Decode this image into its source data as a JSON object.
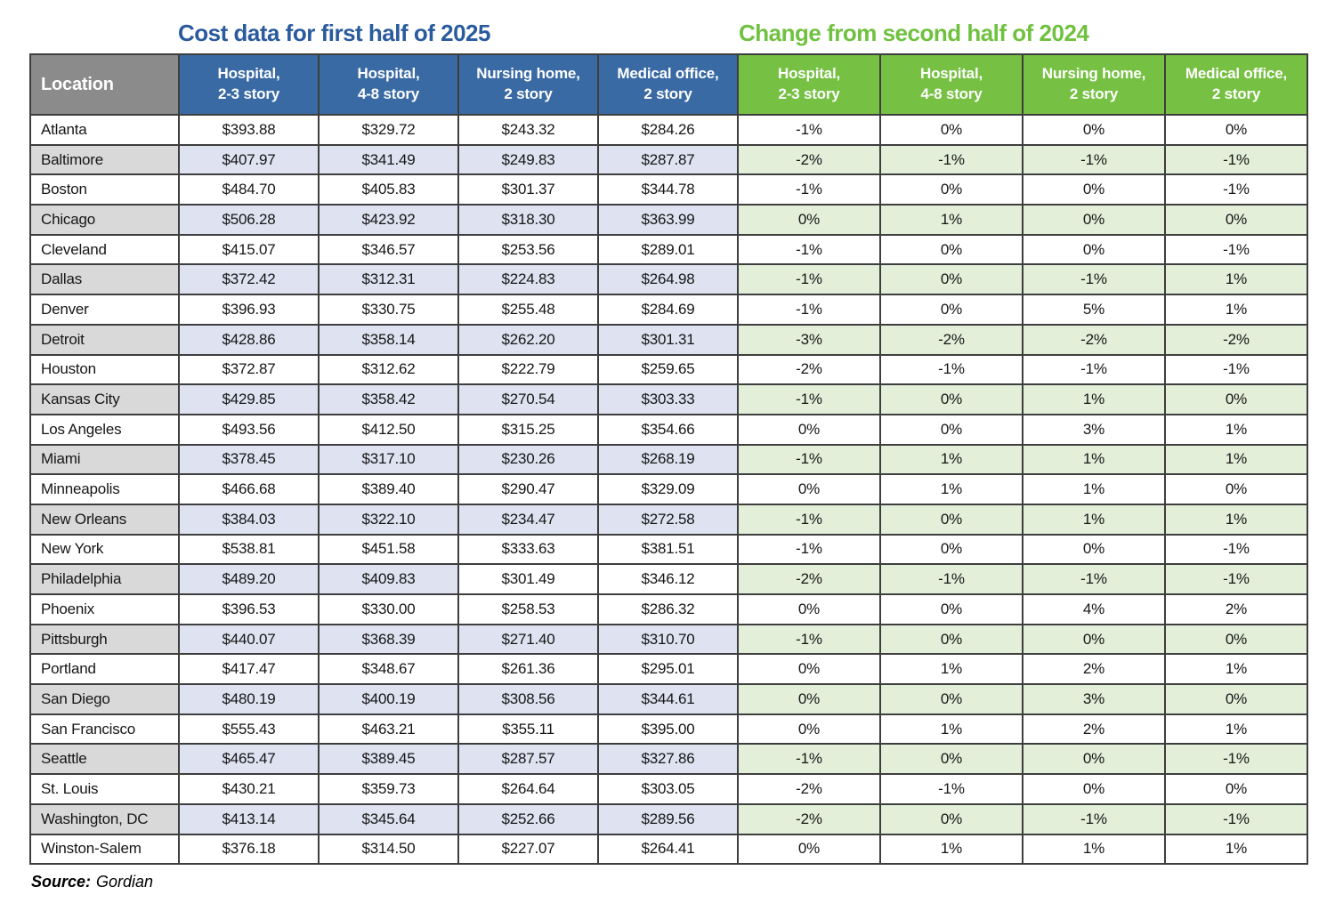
{
  "colors": {
    "title_blue": "#2a5b9e",
    "title_green": "#6fc13f",
    "header_blue": "#3a6aa4",
    "header_green": "#76c043",
    "header_gray": "#8b8b8b",
    "stripe_gray": "#d9d9d9",
    "stripe_lavender": "#dee2f1",
    "stripe_green": "#e3efd9"
  },
  "source": {
    "label": "Source:",
    "value": "Gordian"
  },
  "chart_data": {
    "type": "table",
    "title_left": "Cost data for first half of 2025",
    "title_right": "Change from second half of 2024",
    "location_header": "Location",
    "cost_section_columns": [
      {
        "line1": "Hospital,",
        "line2": "2-3 story"
      },
      {
        "line1": "Hospital,",
        "line2": "4-8 story"
      },
      {
        "line1": "Nursing home,",
        "line2": "2 story"
      },
      {
        "line1": "Medical office,",
        "line2": "2 story"
      }
    ],
    "change_section_columns": [
      {
        "line1": "Hospital,",
        "line2": "2-3 story"
      },
      {
        "line1": "Hospital,",
        "line2": "4-8 story"
      },
      {
        "line1": "Nursing home,",
        "line2": "2 story"
      },
      {
        "line1": "Medical office,",
        "line2": "2 story"
      }
    ],
    "rows": [
      {
        "location": "Atlanta",
        "costs": [
          "$393.88",
          "$329.72",
          "$243.32",
          "$284.26"
        ],
        "changes": [
          "-1%",
          "0%",
          "0%",
          "0%"
        ]
      },
      {
        "location": "Baltimore",
        "costs": [
          "$407.97",
          "$341.49",
          "$249.83",
          "$287.87"
        ],
        "changes": [
          "-2%",
          "-1%",
          "-1%",
          "-1%"
        ]
      },
      {
        "location": "Boston",
        "costs": [
          "$484.70",
          "$405.83",
          "$301.37",
          "$344.78"
        ],
        "changes": [
          "-1%",
          "0%",
          "0%",
          "-1%"
        ]
      },
      {
        "location": "Chicago",
        "costs": [
          "$506.28",
          "$423.92",
          "$318.30",
          "$363.99"
        ],
        "changes": [
          "0%",
          "1%",
          "0%",
          "0%"
        ]
      },
      {
        "location": "Cleveland",
        "costs": [
          "$415.07",
          "$346.57",
          "$253.56",
          "$289.01"
        ],
        "changes": [
          "-1%",
          "0%",
          "0%",
          "-1%"
        ]
      },
      {
        "location": "Dallas",
        "costs": [
          "$372.42",
          "$312.31",
          "$224.83",
          "$264.98"
        ],
        "changes": [
          "-1%",
          "0%",
          "-1%",
          "1%"
        ]
      },
      {
        "location": "Denver",
        "costs": [
          "$396.93",
          "$330.75",
          "$255.48",
          "$284.69"
        ],
        "changes": [
          "-1%",
          "0%",
          "5%",
          "1%"
        ]
      },
      {
        "location": "Detroit",
        "costs": [
          "$428.86",
          "$358.14",
          "$262.20",
          "$301.31"
        ],
        "changes": [
          "-3%",
          "-2%",
          "-2%",
          "-2%"
        ]
      },
      {
        "location": "Houston",
        "costs": [
          "$372.87",
          "$312.62",
          "$222.79",
          "$259.65"
        ],
        "changes": [
          "-2%",
          "-1%",
          "-1%",
          "-1%"
        ]
      },
      {
        "location": "Kansas City",
        "costs": [
          "$429.85",
          "$358.42",
          "$270.54",
          "$303.33"
        ],
        "changes": [
          "-1%",
          "0%",
          "1%",
          "0%"
        ]
      },
      {
        "location": "Los Angeles",
        "costs": [
          "$493.56",
          "$412.50",
          "$315.25",
          "$354.66"
        ],
        "changes": [
          "0%",
          "0%",
          "3%",
          "1%"
        ]
      },
      {
        "location": "Miami",
        "costs": [
          "$378.45",
          "$317.10",
          "$230.26",
          "$268.19"
        ],
        "changes": [
          "-1%",
          "1%",
          "1%",
          "1%"
        ]
      },
      {
        "location": "Minneapolis",
        "costs": [
          "$466.68",
          "$389.40",
          "$290.47",
          "$329.09"
        ],
        "changes": [
          "0%",
          "1%",
          "1%",
          "0%"
        ]
      },
      {
        "location": "New Orleans",
        "costs": [
          "$384.03",
          "$322.10",
          "$234.47",
          "$272.58"
        ],
        "changes": [
          "-1%",
          "0%",
          "1%",
          "1%"
        ]
      },
      {
        "location": "New York",
        "costs": [
          "$538.81",
          "$451.58",
          "$333.63",
          "$381.51"
        ],
        "changes": [
          "-1%",
          "0%",
          "0%",
          "-1%"
        ]
      },
      {
        "location": "Philadelphia",
        "costs": [
          "$489.20",
          "$409.83",
          "$301.49",
          "$346.12"
        ],
        "changes": [
          "-2%",
          "-1%",
          "-1%",
          "-1%"
        ],
        "unshaded_cost_cells": [
          2,
          3
        ]
      },
      {
        "location": "Phoenix",
        "costs": [
          "$396.53",
          "$330.00",
          "$258.53",
          "$286.32"
        ],
        "changes": [
          "0%",
          "0%",
          "4%",
          "2%"
        ]
      },
      {
        "location": "Pittsburgh",
        "costs": [
          "$440.07",
          "$368.39",
          "$271.40",
          "$310.70"
        ],
        "changes": [
          "-1%",
          "0%",
          "0%",
          "0%"
        ]
      },
      {
        "location": "Portland",
        "costs": [
          "$417.47",
          "$348.67",
          "$261.36",
          "$295.01"
        ],
        "changes": [
          "0%",
          "1%",
          "2%",
          "1%"
        ]
      },
      {
        "location": "San Diego",
        "costs": [
          "$480.19",
          "$400.19",
          "$308.56",
          "$344.61"
        ],
        "changes": [
          "0%",
          "0%",
          "3%",
          "0%"
        ]
      },
      {
        "location": "San Francisco",
        "costs": [
          "$555.43",
          "$463.21",
          "$355.11",
          "$395.00"
        ],
        "changes": [
          "0%",
          "1%",
          "2%",
          "1%"
        ]
      },
      {
        "location": "Seattle",
        "costs": [
          "$465.47",
          "$389.45",
          "$287.57",
          "$327.86"
        ],
        "changes": [
          "-1%",
          "0%",
          "0%",
          "-1%"
        ]
      },
      {
        "location": "St. Louis",
        "costs": [
          "$430.21",
          "$359.73",
          "$264.64",
          "$303.05"
        ],
        "changes": [
          "-2%",
          "-1%",
          "0%",
          "0%"
        ]
      },
      {
        "location": "Washington, DC",
        "costs": [
          "$413.14",
          "$345.64",
          "$252.66",
          "$289.56"
        ],
        "changes": [
          "-2%",
          "0%",
          "-1%",
          "-1%"
        ]
      },
      {
        "location": "Winston-Salem",
        "costs": [
          "$376.18",
          "$314.50",
          "$227.07",
          "$264.41"
        ],
        "changes": [
          "0%",
          "1%",
          "1%",
          "1%"
        ]
      }
    ]
  }
}
